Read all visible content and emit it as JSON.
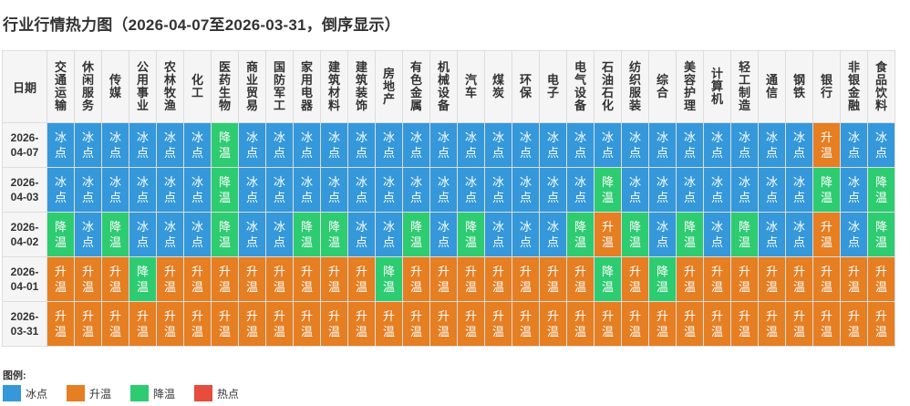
{
  "title": "行业行情热力图（2026-04-07至2026-03-31，倒序显示）",
  "chart_data": {
    "type": "heatmap",
    "corner_label": "日期",
    "columns": [
      "交通运输",
      "休闲服务",
      "传媒",
      "公用事业",
      "农林牧渔",
      "化工",
      "医药生物",
      "商业贸易",
      "国防军工",
      "家用电器",
      "建筑材料",
      "建筑装饰",
      "房地产",
      "有色金属",
      "机械设备",
      "汽车",
      "煤炭",
      "环保",
      "电子",
      "电气设备",
      "石油石化",
      "纺织服装",
      "综合",
      "美容护理",
      "计算机",
      "轻工制造",
      "通信",
      "钢铁",
      "银行",
      "非银金融",
      "食品饮料"
    ],
    "rows": [
      {
        "date": "2026-04-07",
        "values": [
          "冰点",
          "冰点",
          "冰点",
          "冰点",
          "冰点",
          "冰点",
          "降温",
          "冰点",
          "冰点",
          "冰点",
          "冰点",
          "冰点",
          "冰点",
          "冰点",
          "冰点",
          "冰点",
          "冰点",
          "冰点",
          "冰点",
          "冰点",
          "冰点",
          "冰点",
          "冰点",
          "冰点",
          "冰点",
          "冰点",
          "冰点",
          "冰点",
          "升温",
          "冰点",
          "冰点"
        ]
      },
      {
        "date": "2026-04-03",
        "values": [
          "冰点",
          "冰点",
          "冰点",
          "冰点",
          "冰点",
          "冰点",
          "降温",
          "冰点",
          "冰点",
          "冰点",
          "冰点",
          "冰点",
          "冰点",
          "冰点",
          "冰点",
          "冰点",
          "冰点",
          "冰点",
          "冰点",
          "冰点",
          "降温",
          "冰点",
          "冰点",
          "冰点",
          "冰点",
          "冰点",
          "冰点",
          "冰点",
          "降温",
          "冰点",
          "降温"
        ]
      },
      {
        "date": "2026-04-02",
        "values": [
          "降温",
          "冰点",
          "降温",
          "冰点",
          "冰点",
          "冰点",
          "降温",
          "冰点",
          "冰点",
          "降温",
          "降温",
          "冰点",
          "冰点",
          "降温",
          "冰点",
          "降温",
          "冰点",
          "冰点",
          "冰点",
          "降温",
          "升温",
          "降温",
          "冰点",
          "降温",
          "冰点",
          "降温",
          "冰点",
          "冰点",
          "升温",
          "冰点",
          "降温"
        ]
      },
      {
        "date": "2026-04-01",
        "values": [
          "升温",
          "升温",
          "升温",
          "降温",
          "升温",
          "升温",
          "升温",
          "升温",
          "升温",
          "升温",
          "升温",
          "升温",
          "降温",
          "升温",
          "升温",
          "升温",
          "升温",
          "升温",
          "升温",
          "升温",
          "降温",
          "升温",
          "降温",
          "升温",
          "升温",
          "升温",
          "升温",
          "升温",
          "升温",
          "升温",
          "升温"
        ]
      },
      {
        "date": "2026-03-31",
        "values": [
          "升温",
          "升温",
          "升温",
          "升温",
          "升温",
          "升温",
          "升温",
          "升温",
          "升温",
          "升温",
          "升温",
          "升温",
          "升温",
          "升温",
          "升温",
          "升温",
          "升温",
          "升温",
          "升温",
          "升温",
          "升温",
          "升温",
          "升温",
          "升温",
          "升温",
          "升温",
          "升温",
          "升温",
          "升温",
          "升温",
          "升温"
        ]
      }
    ],
    "legend_title": "图例:",
    "legend": [
      {
        "label": "冰点",
        "color": "#3498db"
      },
      {
        "label": "升温",
        "color": "#e67e22"
      },
      {
        "label": "降温",
        "color": "#2ecc71"
      },
      {
        "label": "热点",
        "color": "#e74c3c"
      }
    ]
  }
}
